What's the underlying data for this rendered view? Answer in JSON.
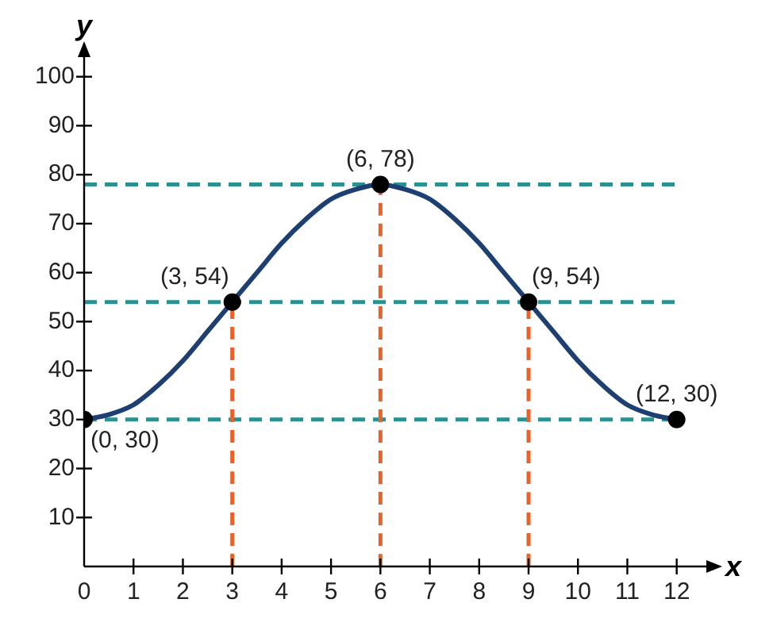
{
  "chart_data": {
    "type": "line",
    "xlabel": "x",
    "ylabel": "y",
    "xlim": [
      0,
      12.6
    ],
    "ylim": [
      0,
      104
    ],
    "xticks": [
      0,
      1,
      2,
      3,
      4,
      5,
      6,
      7,
      8,
      9,
      10,
      11,
      12
    ],
    "yticks": [
      10,
      20,
      30,
      40,
      50,
      60,
      70,
      80,
      90,
      100
    ],
    "grid": false,
    "legend": false,
    "series": [
      {
        "type": "line",
        "color": "#1d3f72",
        "marker": "none",
        "x": [
          0,
          0.5,
          1,
          1.5,
          2,
          2.5,
          3,
          3.5,
          4,
          4.5,
          5,
          5.5,
          6,
          6.5,
          7,
          7.5,
          8,
          8.5,
          9,
          9.5,
          10,
          10.5,
          11,
          11.5,
          12
        ],
        "values": [
          30,
          31,
          33,
          37,
          42,
          48,
          54,
          60,
          66,
          71,
          75,
          77,
          78,
          77,
          75,
          71,
          66,
          60,
          54,
          48,
          42,
          37,
          33,
          31,
          30
        ]
      },
      {
        "type": "scatter",
        "color": "#000000",
        "marker": "circle",
        "x": [
          0,
          3,
          6,
          9,
          12
        ],
        "values": [
          30,
          54,
          78,
          54,
          30
        ],
        "value_labels": [
          "(0, 30)",
          "(3, 54)",
          "(6, 78)",
          "(9, 54)",
          "(12, 30)"
        ]
      },
      {
        "type": "line",
        "color": "#e8632b",
        "line_style": "dashed",
        "marker": "none",
        "x": [
          3,
          3
        ],
        "values": [
          0,
          54
        ]
      },
      {
        "type": "line",
        "color": "#e8632b",
        "line_style": "dashed",
        "marker": "none",
        "x": [
          6,
          6
        ],
        "values": [
          0,
          78
        ]
      },
      {
        "type": "line",
        "color": "#e8632b",
        "line_style": "dashed",
        "marker": "none",
        "x": [
          9,
          9
        ],
        "values": [
          0,
          54
        ]
      }
    ],
    "ref_lines": [
      {
        "axis": "y",
        "value": 30,
        "color": "#2a9191",
        "line_style": "dashed"
      },
      {
        "axis": "y",
        "value": 54,
        "color": "#2a9191",
        "line_style": "dashed"
      },
      {
        "axis": "y",
        "value": 78,
        "color": "#2a9191",
        "line_style": "dashed"
      }
    ]
  }
}
